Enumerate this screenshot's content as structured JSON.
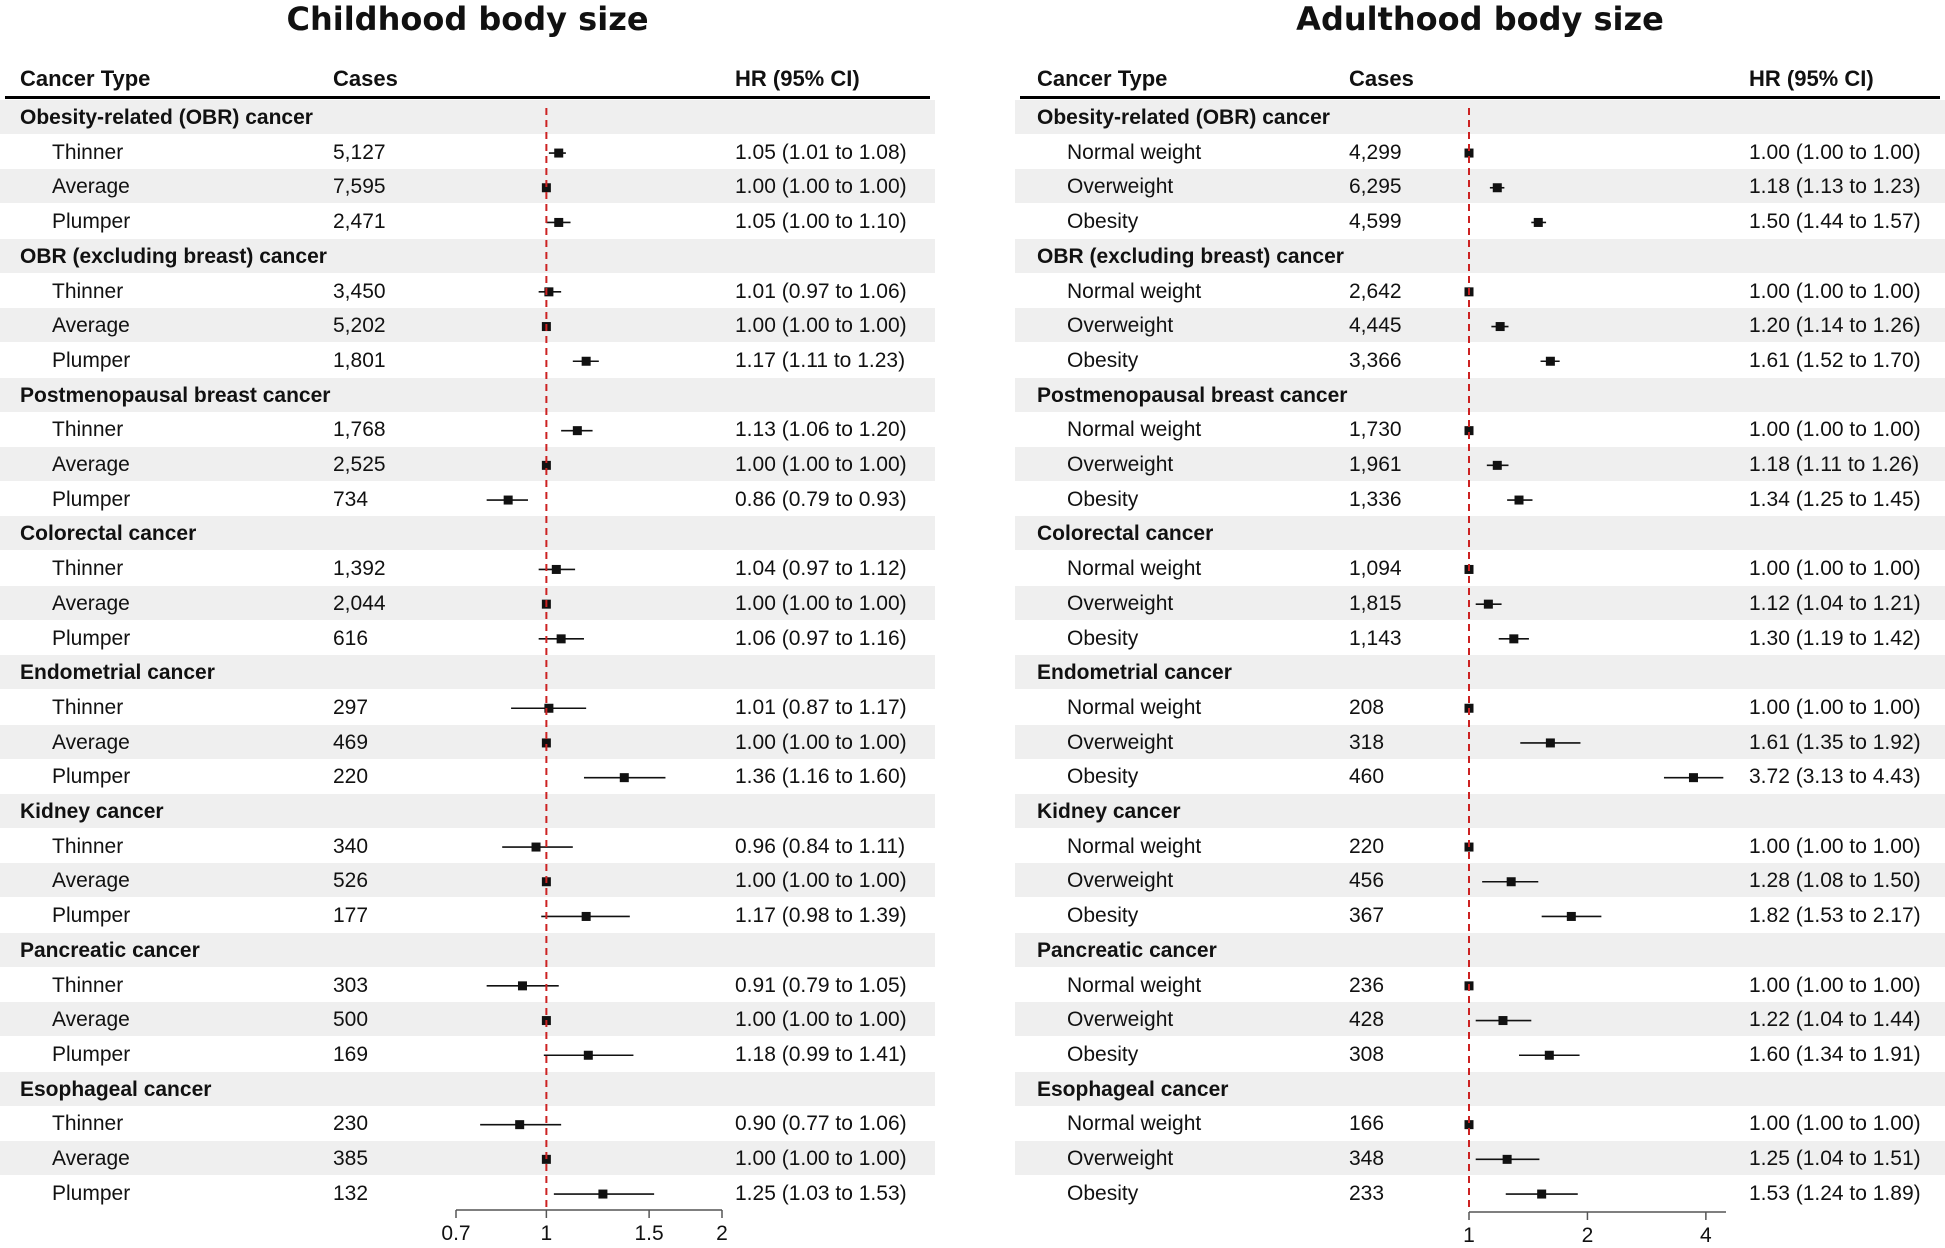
{
  "colors": {
    "reference_line": "#cc2222",
    "band": "#efefef",
    "marker": "#111111"
  },
  "headers": {
    "cancer_type": "Cancer Type",
    "cases": "Cases",
    "hr": "HR (95% CI)"
  },
  "chart_data": [
    {
      "type": "forest",
      "title": "Childhood body size",
      "x_scale": "log",
      "xlim": [
        0.7,
        2
      ],
      "xticks": [
        0.7,
        1,
        1.5,
        2
      ],
      "xtick_labels": [
        "0.7",
        "1",
        "1.5",
        "2"
      ],
      "reference_value": 1,
      "groups": [
        {
          "name": "Obesity-related (OBR) cancer",
          "rows": [
            {
              "label": "Thinner",
              "cases": "5,127",
              "hr": 1.05,
              "lo": 1.01,
              "hi": 1.08,
              "text": "1.05 (1.01 to 1.08)"
            },
            {
              "label": "Average",
              "cases": "7,595",
              "hr": 1.0,
              "lo": 1.0,
              "hi": 1.0,
              "text": "1.00 (1.00 to 1.00)"
            },
            {
              "label": "Plumper",
              "cases": "2,471",
              "hr": 1.05,
              "lo": 1.0,
              "hi": 1.1,
              "text": "1.05 (1.00 to 1.10)"
            }
          ]
        },
        {
          "name": "OBR (excluding breast) cancer",
          "rows": [
            {
              "label": "Thinner",
              "cases": "3,450",
              "hr": 1.01,
              "lo": 0.97,
              "hi": 1.06,
              "text": "1.01 (0.97 to 1.06)"
            },
            {
              "label": "Average",
              "cases": "5,202",
              "hr": 1.0,
              "lo": 1.0,
              "hi": 1.0,
              "text": "1.00 (1.00 to 1.00)"
            },
            {
              "label": "Plumper",
              "cases": "1,801",
              "hr": 1.17,
              "lo": 1.11,
              "hi": 1.23,
              "text": "1.17 (1.11 to 1.23)"
            }
          ]
        },
        {
          "name": "Postmenopausal breast cancer",
          "rows": [
            {
              "label": "Thinner",
              "cases": "1,768",
              "hr": 1.13,
              "lo": 1.06,
              "hi": 1.2,
              "text": "1.13 (1.06 to 1.20)"
            },
            {
              "label": "Average",
              "cases": "2,525",
              "hr": 1.0,
              "lo": 1.0,
              "hi": 1.0,
              "text": "1.00 (1.00 to 1.00)"
            },
            {
              "label": "Plumper",
              "cases": "734",
              "hr": 0.86,
              "lo": 0.79,
              "hi": 0.93,
              "text": "0.86 (0.79 to 0.93)"
            }
          ]
        },
        {
          "name": "Colorectal cancer",
          "rows": [
            {
              "label": "Thinner",
              "cases": "1,392",
              "hr": 1.04,
              "lo": 0.97,
              "hi": 1.12,
              "text": "1.04 (0.97 to 1.12)"
            },
            {
              "label": "Average",
              "cases": "2,044",
              "hr": 1.0,
              "lo": 1.0,
              "hi": 1.0,
              "text": "1.00 (1.00 to 1.00)"
            },
            {
              "label": "Plumper",
              "cases": "616",
              "hr": 1.06,
              "lo": 0.97,
              "hi": 1.16,
              "text": "1.06 (0.97 to 1.16)"
            }
          ]
        },
        {
          "name": "Endometrial cancer",
          "rows": [
            {
              "label": "Thinner",
              "cases": "297",
              "hr": 1.01,
              "lo": 0.87,
              "hi": 1.17,
              "text": "1.01 (0.87 to 1.17)"
            },
            {
              "label": "Average",
              "cases": "469",
              "hr": 1.0,
              "lo": 1.0,
              "hi": 1.0,
              "text": "1.00 (1.00 to 1.00)"
            },
            {
              "label": "Plumper",
              "cases": "220",
              "hr": 1.36,
              "lo": 1.16,
              "hi": 1.6,
              "text": "1.36 (1.16 to 1.60)"
            }
          ]
        },
        {
          "name": "Kidney cancer",
          "rows": [
            {
              "label": "Thinner",
              "cases": "340",
              "hr": 0.96,
              "lo": 0.84,
              "hi": 1.11,
              "text": "0.96 (0.84 to 1.11)"
            },
            {
              "label": "Average",
              "cases": "526",
              "hr": 1.0,
              "lo": 1.0,
              "hi": 1.0,
              "text": "1.00 (1.00 to 1.00)"
            },
            {
              "label": "Plumper",
              "cases": "177",
              "hr": 1.17,
              "lo": 0.98,
              "hi": 1.39,
              "text": "1.17 (0.98 to 1.39)"
            }
          ]
        },
        {
          "name": "Pancreatic cancer",
          "rows": [
            {
              "label": "Thinner",
              "cases": "303",
              "hr": 0.91,
              "lo": 0.79,
              "hi": 1.05,
              "text": "0.91 (0.79 to 1.05)"
            },
            {
              "label": "Average",
              "cases": "500",
              "hr": 1.0,
              "lo": 1.0,
              "hi": 1.0,
              "text": "1.00 (1.00 to 1.00)"
            },
            {
              "label": "Plumper",
              "cases": "169",
              "hr": 1.18,
              "lo": 0.99,
              "hi": 1.41,
              "text": "1.18 (0.99 to 1.41)"
            }
          ]
        },
        {
          "name": "Esophageal cancer",
          "rows": [
            {
              "label": "Thinner",
              "cases": "230",
              "hr": 0.9,
              "lo": 0.77,
              "hi": 1.06,
              "text": "0.90 (0.77 to 1.06)"
            },
            {
              "label": "Average",
              "cases": "385",
              "hr": 1.0,
              "lo": 1.0,
              "hi": 1.0,
              "text": "1.00 (1.00 to 1.00)"
            },
            {
              "label": "Plumper",
              "cases": "132",
              "hr": 1.25,
              "lo": 1.03,
              "hi": 1.53,
              "text": "1.25 (1.03 to 1.53)"
            }
          ]
        }
      ]
    },
    {
      "type": "forest",
      "title": "Adulthood body size",
      "x_scale": "log",
      "xlim": [
        1,
        4.5
      ],
      "xticks": [
        1,
        2,
        4
      ],
      "xtick_labels": [
        "1",
        "2",
        "4"
      ],
      "reference_value": 1,
      "groups": [
        {
          "name": "Obesity-related (OBR) cancer",
          "rows": [
            {
              "label": "Normal weight",
              "cases": "4,299",
              "hr": 1.0,
              "lo": 1.0,
              "hi": 1.0,
              "text": "1.00 (1.00 to 1.00)"
            },
            {
              "label": "Overweight",
              "cases": "6,295",
              "hr": 1.18,
              "lo": 1.13,
              "hi": 1.23,
              "text": "1.18 (1.13 to 1.23)"
            },
            {
              "label": "Obesity",
              "cases": "4,599",
              "hr": 1.5,
              "lo": 1.44,
              "hi": 1.57,
              "text": "1.50 (1.44 to 1.57)"
            }
          ]
        },
        {
          "name": "OBR (excluding breast) cancer",
          "rows": [
            {
              "label": "Normal weight",
              "cases": "2,642",
              "hr": 1.0,
              "lo": 1.0,
              "hi": 1.0,
              "text": "1.00 (1.00 to 1.00)"
            },
            {
              "label": "Overweight",
              "cases": "4,445",
              "hr": 1.2,
              "lo": 1.14,
              "hi": 1.26,
              "text": "1.20 (1.14 to 1.26)"
            },
            {
              "label": "Obesity",
              "cases": "3,366",
              "hr": 1.61,
              "lo": 1.52,
              "hi": 1.7,
              "text": "1.61 (1.52 to 1.70)"
            }
          ]
        },
        {
          "name": "Postmenopausal breast cancer",
          "rows": [
            {
              "label": "Normal weight",
              "cases": "1,730",
              "hr": 1.0,
              "lo": 1.0,
              "hi": 1.0,
              "text": "1.00 (1.00 to 1.00)"
            },
            {
              "label": "Overweight",
              "cases": "1,961",
              "hr": 1.18,
              "lo": 1.11,
              "hi": 1.26,
              "text": "1.18 (1.11 to 1.26)"
            },
            {
              "label": "Obesity",
              "cases": "1,336",
              "hr": 1.34,
              "lo": 1.25,
              "hi": 1.45,
              "text": "1.34 (1.25 to 1.45)"
            }
          ]
        },
        {
          "name": "Colorectal cancer",
          "rows": [
            {
              "label": "Normal weight",
              "cases": "1,094",
              "hr": 1.0,
              "lo": 1.0,
              "hi": 1.0,
              "text": "1.00 (1.00 to 1.00)"
            },
            {
              "label": "Overweight",
              "cases": "1,815",
              "hr": 1.12,
              "lo": 1.04,
              "hi": 1.21,
              "text": "1.12 (1.04 to 1.21)"
            },
            {
              "label": "Obesity",
              "cases": "1,143",
              "hr": 1.3,
              "lo": 1.19,
              "hi": 1.42,
              "text": "1.30 (1.19 to 1.42)"
            }
          ]
        },
        {
          "name": "Endometrial cancer",
          "rows": [
            {
              "label": "Normal weight",
              "cases": "208",
              "hr": 1.0,
              "lo": 1.0,
              "hi": 1.0,
              "text": "1.00 (1.00 to 1.00)"
            },
            {
              "label": "Overweight",
              "cases": "318",
              "hr": 1.61,
              "lo": 1.35,
              "hi": 1.92,
              "text": "1.61 (1.35 to 1.92)"
            },
            {
              "label": "Obesity",
              "cases": "460",
              "hr": 3.72,
              "lo": 3.13,
              "hi": 4.43,
              "text": "3.72 (3.13 to 4.43)"
            }
          ]
        },
        {
          "name": "Kidney cancer",
          "rows": [
            {
              "label": "Normal weight",
              "cases": "220",
              "hr": 1.0,
              "lo": 1.0,
              "hi": 1.0,
              "text": "1.00 (1.00 to 1.00)"
            },
            {
              "label": "Overweight",
              "cases": "456",
              "hr": 1.28,
              "lo": 1.08,
              "hi": 1.5,
              "text": "1.28 (1.08 to 1.50)"
            },
            {
              "label": "Obesity",
              "cases": "367",
              "hr": 1.82,
              "lo": 1.53,
              "hi": 2.17,
              "text": "1.82 (1.53 to 2.17)"
            }
          ]
        },
        {
          "name": "Pancreatic cancer",
          "rows": [
            {
              "label": "Normal weight",
              "cases": "236",
              "hr": 1.0,
              "lo": 1.0,
              "hi": 1.0,
              "text": "1.00 (1.00 to 1.00)"
            },
            {
              "label": "Overweight",
              "cases": "428",
              "hr": 1.22,
              "lo": 1.04,
              "hi": 1.44,
              "text": "1.22 (1.04 to 1.44)"
            },
            {
              "label": "Obesity",
              "cases": "308",
              "hr": 1.6,
              "lo": 1.34,
              "hi": 1.91,
              "text": "1.60 (1.34 to 1.91)"
            }
          ]
        },
        {
          "name": "Esophageal cancer",
          "rows": [
            {
              "label": "Normal weight",
              "cases": "166",
              "hr": 1.0,
              "lo": 1.0,
              "hi": 1.0,
              "text": "1.00 (1.00 to 1.00)"
            },
            {
              "label": "Overweight",
              "cases": "348",
              "hr": 1.25,
              "lo": 1.04,
              "hi": 1.51,
              "text": "1.25 (1.04 to 1.51)"
            },
            {
              "label": "Obesity",
              "cases": "233",
              "hr": 1.53,
              "lo": 1.24,
              "hi": 1.89,
              "text": "1.53 (1.24 to 1.89)"
            }
          ]
        }
      ]
    }
  ]
}
